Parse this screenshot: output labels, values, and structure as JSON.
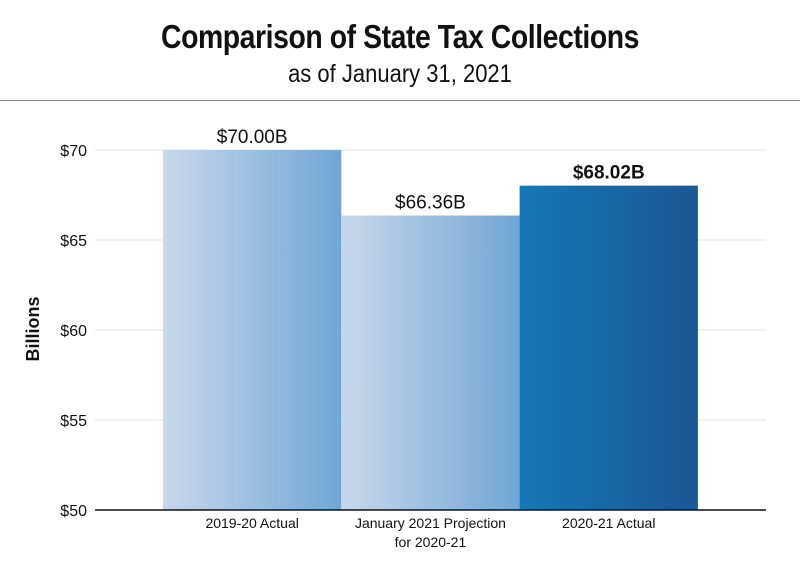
{
  "chart_data": {
    "type": "bar",
    "title": "Comparison of State Tax Collections",
    "subtitle": "as of January 31, 2021",
    "ylabel": "Billions",
    "xlabel": "",
    "ylim": [
      50,
      70
    ],
    "yticks": [
      50,
      55,
      60,
      65,
      70
    ],
    "ytick_labels": [
      "$50",
      "$55",
      "$60",
      "$65",
      "$70"
    ],
    "grid": true,
    "categories": [
      "2019-20 Actual",
      "January 2021 Projection for 2020-21",
      "2020-21 Actual"
    ],
    "category_label_lines": [
      [
        "2019-20 Actual"
      ],
      [
        "January 2021 Projection",
        "for 2020-21"
      ],
      [
        "2020-21 Actual"
      ]
    ],
    "values": [
      70.0,
      66.36,
      68.02
    ],
    "data_labels": [
      "$70.00B",
      "$66.36B",
      "$68.02B"
    ],
    "bold_data_label_index": 2,
    "bar_gradients": [
      [
        "#c9d8eb",
        "#6fa6d5"
      ],
      [
        "#c9d8eb",
        "#6fa6d5"
      ],
      [
        "#1578b6",
        "#1a5795"
      ]
    ]
  }
}
